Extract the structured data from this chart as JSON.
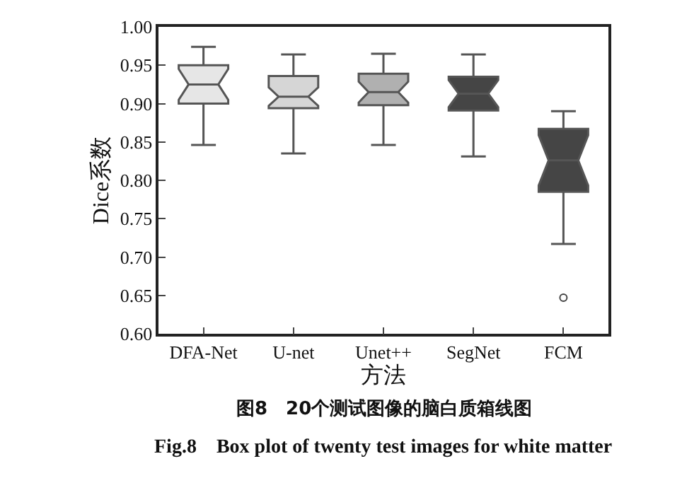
{
  "chart_data": {
    "type": "box",
    "xlabel": "方法",
    "ylabel": "Dice系数",
    "categories": [
      "DFA-Net",
      "U-net",
      "Unet++",
      "SegNet",
      "FCM"
    ],
    "colors": [
      "#e6e6e6",
      "#d6d6d6",
      "#b0b0b0",
      "#454545",
      "#454545"
    ],
    "boxes": [
      {
        "low": 0.846,
        "q1": 0.9,
        "median": 0.925,
        "q3": 0.95,
        "high": 0.974
      },
      {
        "low": 0.835,
        "q1": 0.894,
        "median": 0.909,
        "q3": 0.936,
        "high": 0.964
      },
      {
        "low": 0.846,
        "q1": 0.898,
        "median": 0.915,
        "q3": 0.939,
        "high": 0.965
      },
      {
        "low": 0.831,
        "q1": 0.891,
        "median": 0.913,
        "q3": 0.935,
        "high": 0.964
      },
      {
        "low": 0.717,
        "q1": 0.785,
        "median": 0.826,
        "q3": 0.867,
        "high": 0.89,
        "outliers": [
          0.647
        ]
      }
    ],
    "ylim": [
      0.6,
      1.0
    ],
    "yticks": [
      {
        "value": 0.6,
        "label": "0.60"
      },
      {
        "value": 0.65,
        "label": "0.65"
      },
      {
        "value": 0.7,
        "label": "0.70"
      },
      {
        "value": 0.75,
        "label": "0.75"
      },
      {
        "value": 0.8,
        "label": "0.80"
      },
      {
        "value": 0.85,
        "label": "0.85"
      },
      {
        "value": 0.9,
        "label": "0.90"
      },
      {
        "value": 0.95,
        "label": "0.95"
      },
      {
        "value": 1.0,
        "label": "1.00"
      }
    ],
    "annotations": [
      "图8　20个测试图像的脑白质箱线图",
      "Fig.8　Box plot of twenty test images for white matter"
    ]
  }
}
